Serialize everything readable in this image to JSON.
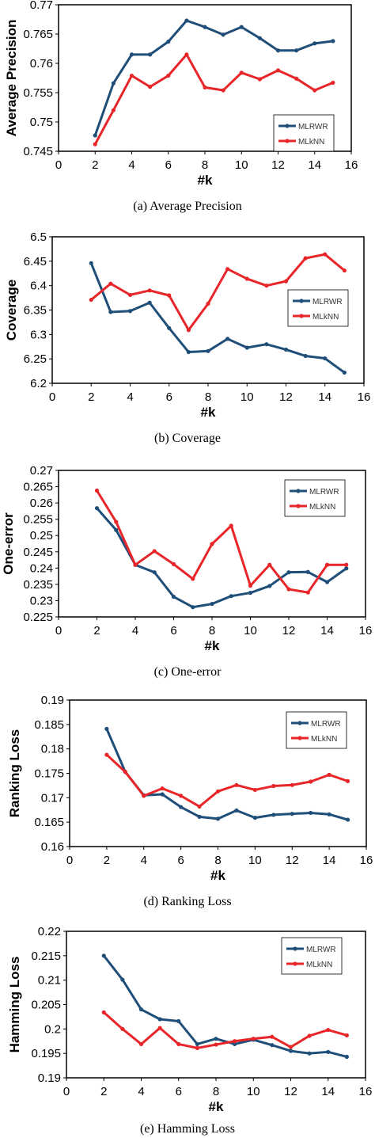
{
  "colors": {
    "series_1": "#1f4e79",
    "series_2": "#e8262a",
    "frame": "#000000"
  },
  "chart_data": [
    {
      "type": "line",
      "caption": "(a)  Average Precision",
      "xlabel": "#k",
      "ylabel": "Average Precision",
      "xlim": [
        0,
        16
      ],
      "ylim": [
        0.745,
        0.77
      ],
      "xticks": [
        "0",
        "2",
        "4",
        "6",
        "8",
        "10",
        "12",
        "14",
        "16"
      ],
      "yticks": [
        "0.745",
        "0.75",
        "0.755",
        "0.76",
        "0.765",
        "0.77"
      ],
      "x": [
        2,
        3,
        4,
        5,
        6,
        7,
        8,
        9,
        10,
        11,
        12,
        13,
        14,
        15
      ],
      "series": [
        {
          "name": "MLRWR",
          "values": [
            0.7477,
            0.7566,
            0.7615,
            0.7615,
            0.7637,
            0.7673,
            0.7662,
            0.7649,
            0.7662,
            0.7643,
            0.7622,
            0.7622,
            0.7634,
            0.7638
          ]
        },
        {
          "name": "MLkNN",
          "values": [
            0.7462,
            0.752,
            0.7579,
            0.756,
            0.7579,
            0.7615,
            0.7559,
            0.7554,
            0.7584,
            0.7573,
            0.7588,
            0.7574,
            0.7554,
            0.7567
          ]
        }
      ],
      "legend": "right",
      "grid": false
    },
    {
      "type": "line",
      "caption": "(b)  Coverage",
      "xlabel": "#k",
      "ylabel": "Coverage",
      "xlim": [
        0,
        16
      ],
      "ylim": [
        6.2,
        6.5
      ],
      "xticks": [
        "0",
        "2",
        "4",
        "6",
        "8",
        "10",
        "12",
        "14",
        "16"
      ],
      "yticks": [
        "6.2",
        "6.25",
        "6.3",
        "6.35",
        "6.4",
        "6.45",
        "6.5"
      ],
      "x": [
        2,
        3,
        4,
        5,
        6,
        7,
        8,
        9,
        10,
        11,
        12,
        13,
        14,
        15
      ],
      "series": [
        {
          "name": "MLRWR",
          "values": [
            6.446,
            6.346,
            6.348,
            6.365,
            6.313,
            6.264,
            6.266,
            6.291,
            6.273,
            6.28,
            6.269,
            6.256,
            6.251,
            6.222
          ]
        },
        {
          "name": "MLkNN",
          "values": [
            6.371,
            6.404,
            6.381,
            6.39,
            6.38,
            6.309,
            6.363,
            6.434,
            6.414,
            6.4,
            6.409,
            6.456,
            6.464,
            6.431
          ]
        }
      ],
      "legend": "right",
      "grid": false
    },
    {
      "type": "line",
      "caption": "(c)  One-error",
      "xlabel": "#k",
      "ylabel": "One-error",
      "xlim": [
        0,
        16
      ],
      "ylim": [
        0.225,
        0.27
      ],
      "xticks": [
        "0",
        "2",
        "4",
        "6",
        "8",
        "10",
        "12",
        "14",
        "16"
      ],
      "yticks": [
        "0.225",
        "0.23",
        "0.235",
        "0.24",
        "0.245",
        "0.25",
        "0.255",
        "0.26",
        "0.265",
        "0.27"
      ],
      "x": [
        2,
        3,
        4,
        5,
        6,
        7,
        8,
        9,
        10,
        11,
        12,
        13,
        14,
        15
      ],
      "series": [
        {
          "name": "MLRWR",
          "values": [
            0.2584,
            0.2517,
            0.241,
            0.2387,
            0.2312,
            0.228,
            0.229,
            0.2314,
            0.2324,
            0.2345,
            0.2387,
            0.2388,
            0.2357,
            0.2399
          ]
        },
        {
          "name": "MLkNN",
          "values": [
            0.2638,
            0.2542,
            0.241,
            0.2452,
            0.2412,
            0.2367,
            0.2474,
            0.253,
            0.2346,
            0.241,
            0.2335,
            0.2325,
            0.241,
            0.241
          ]
        }
      ],
      "legend": "right",
      "grid": false
    },
    {
      "type": "line",
      "caption": "(d)  Ranking Loss",
      "xlabel": "#k",
      "ylabel": "Ranking Loss",
      "xlim": [
        0,
        16
      ],
      "ylim": [
        0.16,
        0.19
      ],
      "xticks": [
        "0",
        "2",
        "4",
        "6",
        "8",
        "10",
        "12",
        "14",
        "16"
      ],
      "yticks": [
        "0.16",
        "0.165",
        "0.17",
        "0.175",
        "0.18",
        "0.185",
        "0.19"
      ],
      "x": [
        2,
        3,
        4,
        5,
        6,
        7,
        8,
        9,
        10,
        11,
        12,
        13,
        14,
        15
      ],
      "series": [
        {
          "name": "MLRWR",
          "values": [
            0.1841,
            0.1753,
            0.1705,
            0.1707,
            0.1681,
            0.1661,
            0.1657,
            0.1674,
            0.1659,
            0.1665,
            0.1667,
            0.1669,
            0.1666,
            0.1655
          ]
        },
        {
          "name": "MLkNN",
          "values": [
            0.1788,
            0.1753,
            0.1704,
            0.1719,
            0.1704,
            0.1682,
            0.1713,
            0.1726,
            0.1716,
            0.1724,
            0.1726,
            0.1733,
            0.1747,
            0.1734
          ]
        }
      ],
      "legend": "right",
      "grid": false
    },
    {
      "type": "line",
      "caption": "(e)  Hamming Loss",
      "xlabel": "#k",
      "ylabel": "Hamming Loss",
      "xlim": [
        0,
        16
      ],
      "ylim": [
        0.19,
        0.22
      ],
      "xticks": [
        "0",
        "2",
        "4",
        "6",
        "8",
        "10",
        "12",
        "14",
        "16"
      ],
      "yticks": [
        "0.19",
        "0.195",
        "0.2",
        "0.205",
        "0.21",
        "0.215",
        "0.22"
      ],
      "x": [
        2,
        3,
        4,
        5,
        6,
        7,
        8,
        9,
        10,
        11,
        12,
        13,
        14,
        15
      ],
      "series": [
        {
          "name": "MLRWR",
          "values": [
            0.215,
            0.2101,
            0.204,
            0.202,
            0.2016,
            0.1969,
            0.198,
            0.1969,
            0.1978,
            0.1967,
            0.1955,
            0.195,
            0.1953,
            0.1943
          ]
        },
        {
          "name": "MLkNN",
          "values": [
            0.2034,
            0.2,
            0.1969,
            0.2002,
            0.1969,
            0.1961,
            0.1968,
            0.1975,
            0.198,
            0.1984,
            0.1963,
            0.1986,
            0.1998,
            0.1987
          ]
        }
      ],
      "legend": "right",
      "grid": false
    }
  ]
}
